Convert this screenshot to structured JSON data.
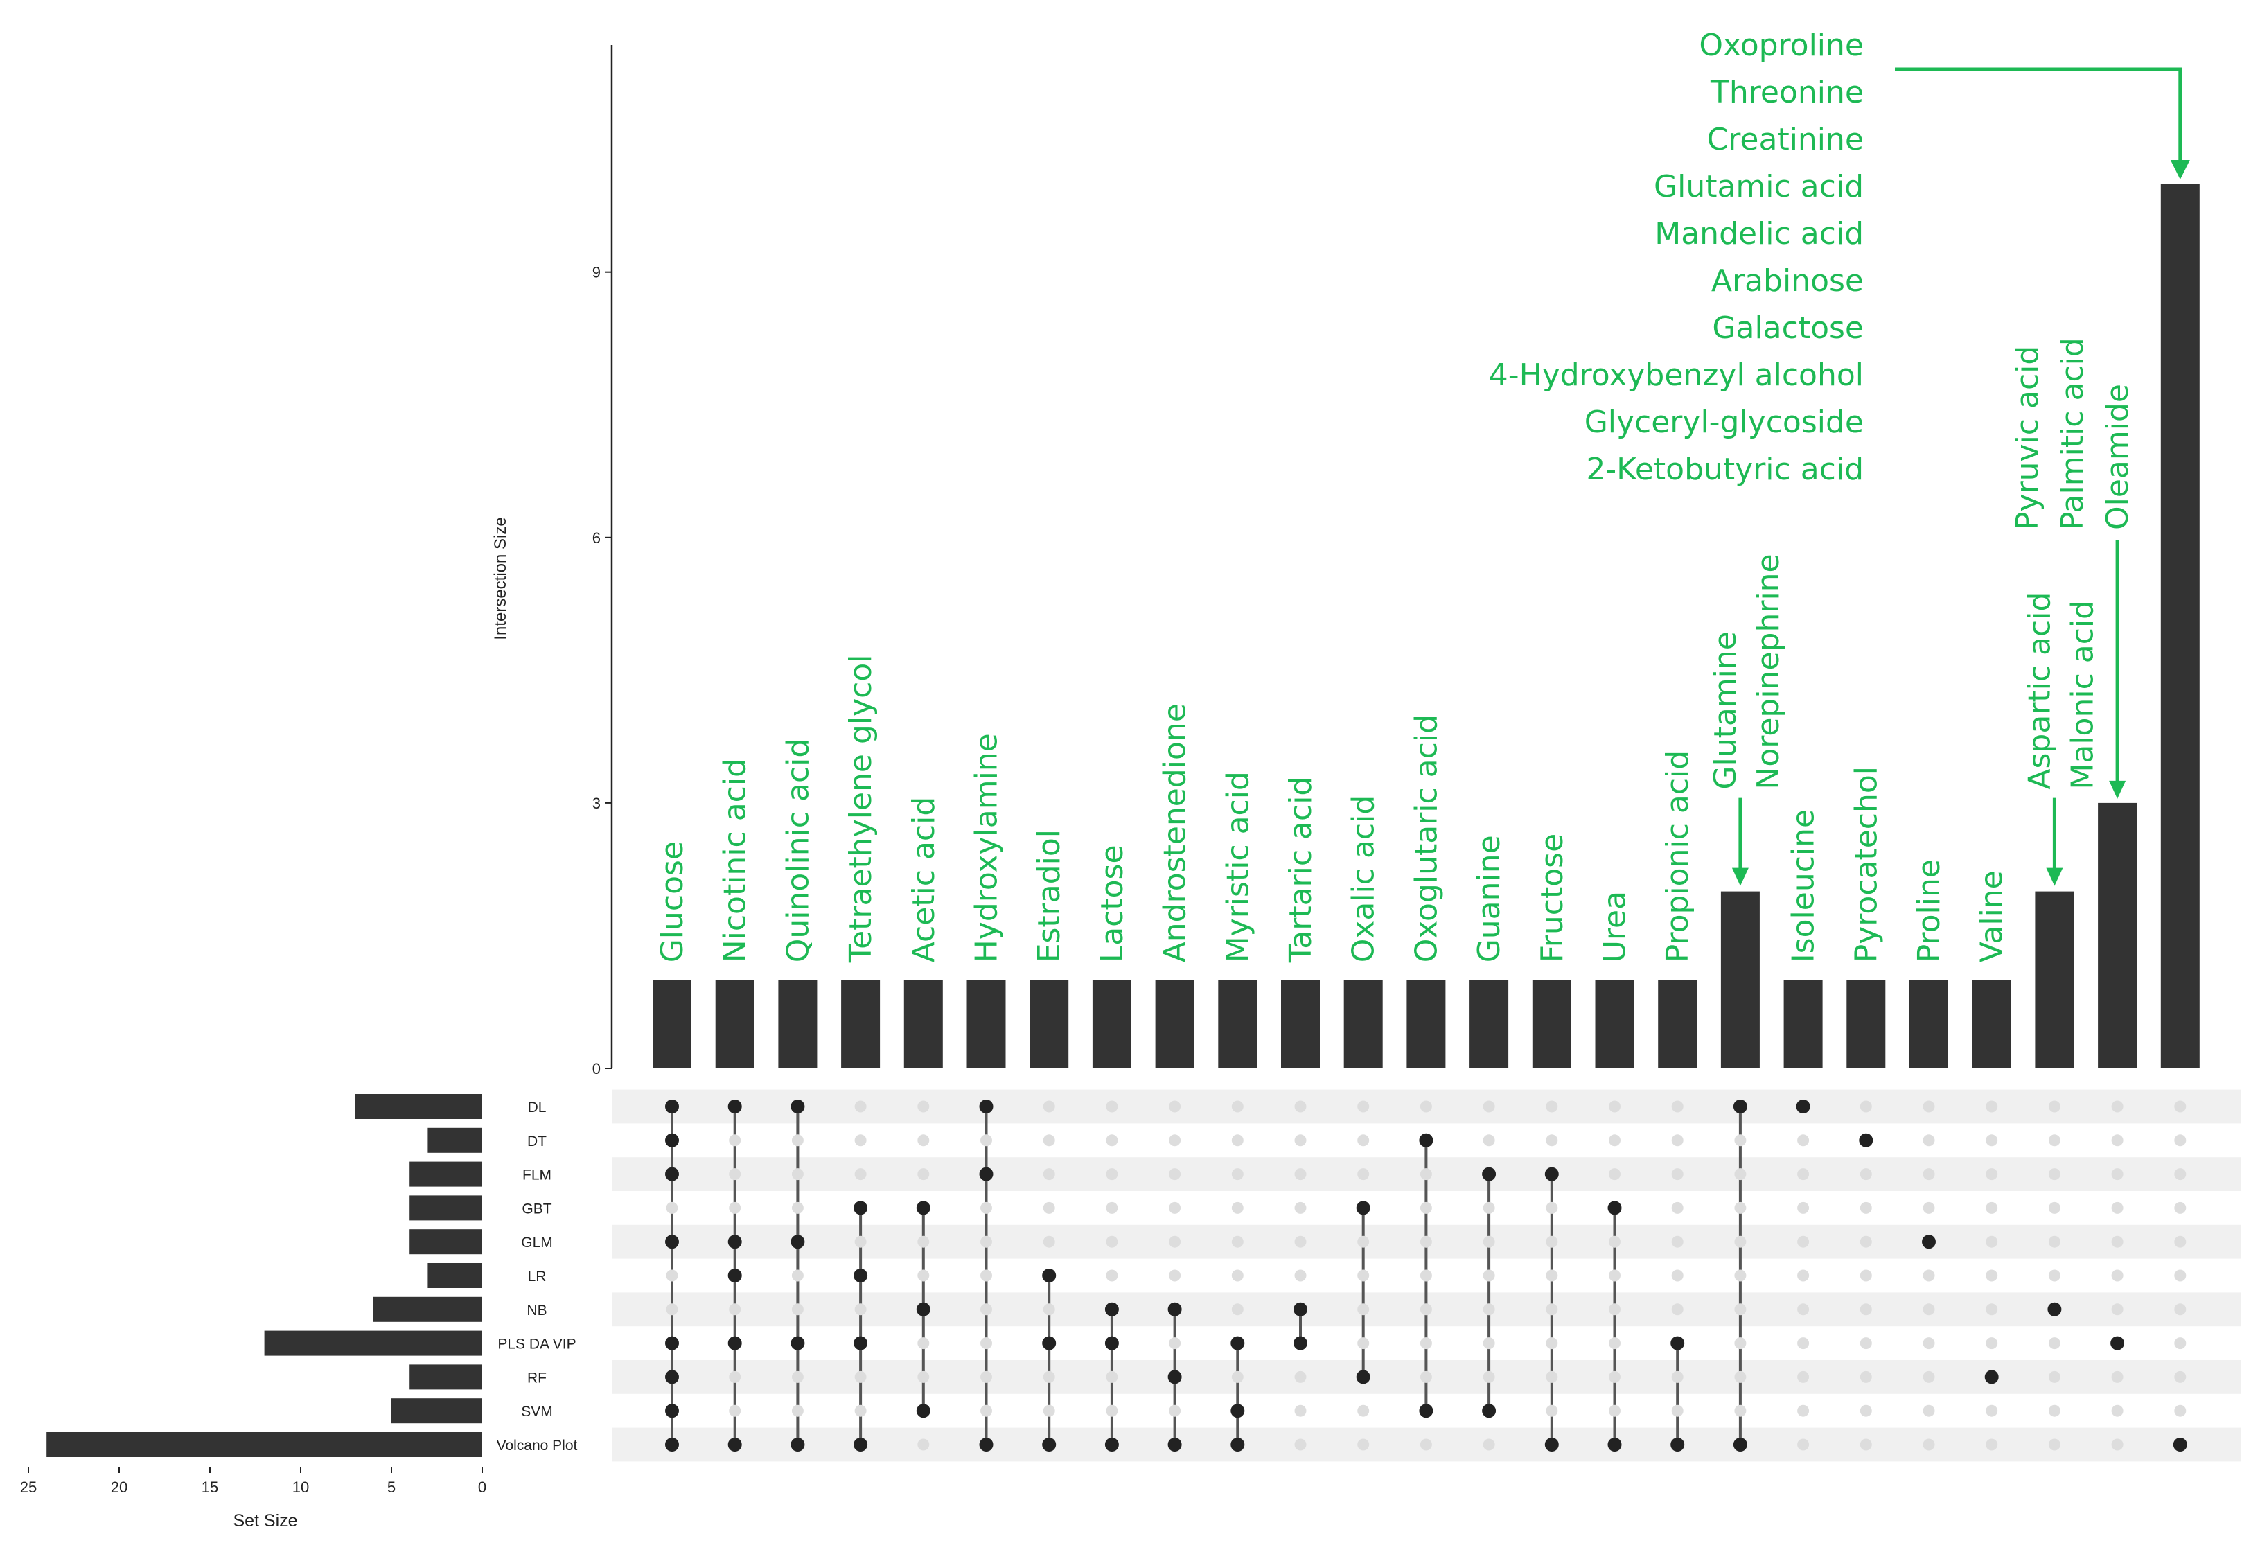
{
  "chart_data": {
    "type": "upset",
    "colors": {
      "bar": "#333333",
      "label": "#1db954",
      "dot_on": "#222222",
      "dot_off": "#dddddd",
      "stripe": "#f0f0f0"
    },
    "intersection_axis": {
      "label": "Intersection Size",
      "ticks": [
        0,
        3,
        6,
        9
      ],
      "ylim": [
        0,
        11.5
      ]
    },
    "set_size_axis": {
      "label": "Set Size",
      "ticks": [
        25,
        20,
        15,
        10,
        5,
        0
      ],
      "xlim": [
        0,
        25
      ]
    },
    "sets": [
      {
        "name": "DL",
        "size": 7
      },
      {
        "name": "DT",
        "size": 3
      },
      {
        "name": "FLM",
        "size": 4
      },
      {
        "name": "GBT",
        "size": 4
      },
      {
        "name": "GLM",
        "size": 4
      },
      {
        "name": "LR",
        "size": 3
      },
      {
        "name": "NB",
        "size": 6
      },
      {
        "name": "PLS DA VIP",
        "size": 12
      },
      {
        "name": "RF",
        "size": 4
      },
      {
        "name": "SVM",
        "size": 5
      },
      {
        "name": "Volcano Plot",
        "size": 24
      }
    ],
    "intersections": [
      {
        "size": 1,
        "labels": [
          "Glucose"
        ],
        "members": [
          0,
          1,
          2,
          4,
          7,
          8,
          9,
          10
        ]
      },
      {
        "size": 1,
        "labels": [
          "Nicotinic acid"
        ],
        "members": [
          0,
          4,
          5,
          7,
          10
        ]
      },
      {
        "size": 1,
        "labels": [
          "Quinolinic acid"
        ],
        "members": [
          0,
          4,
          7,
          10
        ]
      },
      {
        "size": 1,
        "labels": [
          "Tetraethylene glycol"
        ],
        "members": [
          3,
          5,
          7,
          10
        ]
      },
      {
        "size": 1,
        "labels": [
          "Acetic acid"
        ],
        "members": [
          3,
          6,
          9
        ]
      },
      {
        "size": 1,
        "labels": [
          "Hydroxylamine"
        ],
        "members": [
          0,
          2,
          10
        ]
      },
      {
        "size": 1,
        "labels": [
          "Estradiol"
        ],
        "members": [
          5,
          7,
          10
        ]
      },
      {
        "size": 1,
        "labels": [
          "Lactose"
        ],
        "members": [
          6,
          7,
          10
        ]
      },
      {
        "size": 1,
        "labels": [
          "Androstenedione"
        ],
        "members": [
          6,
          8,
          10
        ]
      },
      {
        "size": 1,
        "labels": [
          "Myristic acid"
        ],
        "members": [
          7,
          9,
          10
        ]
      },
      {
        "size": 1,
        "labels": [
          "Tartaric acid"
        ],
        "members": [
          6,
          7
        ]
      },
      {
        "size": 1,
        "labels": [
          "Oxalic acid"
        ],
        "members": [
          3,
          8
        ]
      },
      {
        "size": 1,
        "labels": [
          "Oxoglutaric acid"
        ],
        "members": [
          1,
          9
        ]
      },
      {
        "size": 1,
        "labels": [
          "Guanine"
        ],
        "members": [
          2,
          9
        ]
      },
      {
        "size": 1,
        "labels": [
          "Fructose"
        ],
        "members": [
          2,
          10
        ]
      },
      {
        "size": 1,
        "labels": [
          "Urea"
        ],
        "members": [
          3,
          10
        ]
      },
      {
        "size": 1,
        "labels": [
          "Propionic acid"
        ],
        "members": [
          7,
          10
        ]
      },
      {
        "size": 2,
        "labels": [
          "Glutamine",
          "Norepinephrine"
        ],
        "members": [
          0,
          10
        ]
      },
      {
        "size": 1,
        "labels": [
          "Isoleucine"
        ],
        "members": [
          0
        ]
      },
      {
        "size": 1,
        "labels": [
          "Pyrocatechol"
        ],
        "members": [
          1
        ]
      },
      {
        "size": 1,
        "labels": [
          "Proline"
        ],
        "members": [
          4
        ]
      },
      {
        "size": 1,
        "labels": [
          "Valine"
        ],
        "members": [
          8
        ]
      },
      {
        "size": 2,
        "labels": [
          "Aspartic acid",
          "Malonic acid"
        ],
        "members": [
          6
        ]
      },
      {
        "size": 3,
        "labels": [
          "Pyruvic acid",
          "Palmitic acid",
          "Oleamide"
        ],
        "members": [
          7
        ]
      },
      {
        "size": 10,
        "labels": [
          "Oxoproline",
          "Threonine",
          "Creatinine",
          "Glutamic acid",
          "Mandelic acid",
          "Arabinose",
          "Galactose",
          "4-Hydroxybenzyl alcohol",
          "Glyceryl-glycoside",
          "2-Ketobutyric acid"
        ],
        "members": [
          10
        ]
      }
    ]
  }
}
